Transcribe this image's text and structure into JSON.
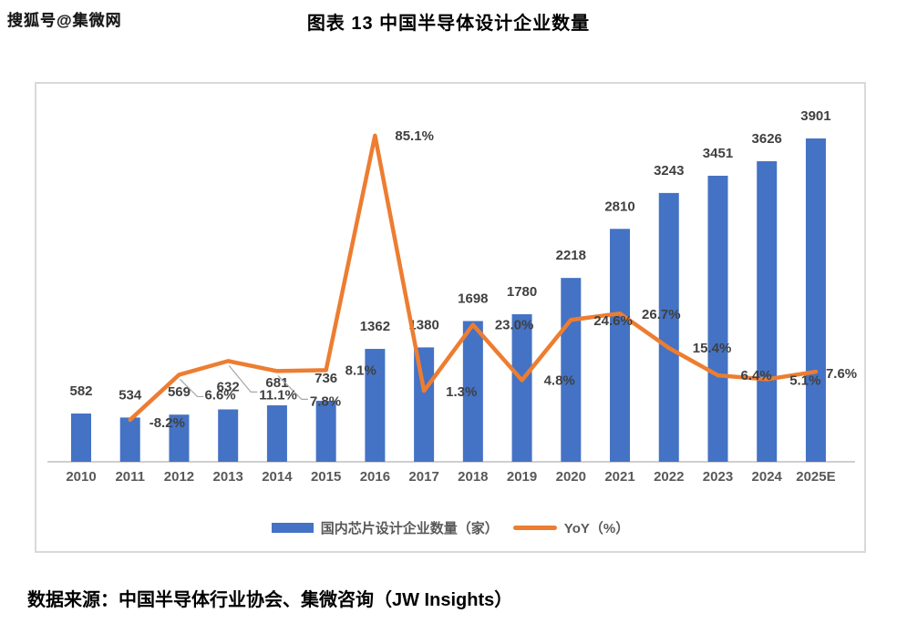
{
  "watermark": "搜狐号@集微网",
  "title": "图表 13 中国半导体设计企业数量",
  "source": "数据来源：中国半导体行业协会、集微咨询（JW Insights）",
  "colors": {
    "bar": "#4472C4",
    "line": "#ED7D31",
    "axis": "#bfbfbf",
    "leader": "#a6a6a6",
    "frame_border": "#d9d9d9",
    "label_text": "#404040"
  },
  "legend": [
    {
      "swatch": "bar",
      "label": "国内芯片设计企业数量（家）"
    },
    {
      "swatch": "line",
      "label": "YoY（%）"
    }
  ],
  "chart_data": {
    "type": "combo-bar-line",
    "title": "图表 13 中国半导体设计企业数量",
    "xlabel": "",
    "ylabel": "",
    "grid": false,
    "legend_position": "bottom",
    "categories": [
      "2010",
      "2011",
      "2012",
      "2013",
      "2014",
      "2015",
      "2016",
      "2017",
      "2018",
      "2019",
      "2020",
      "2021",
      "2022",
      "2023",
      "2024",
      "2025E"
    ],
    "series": [
      {
        "name": "国内芯片设计企业数量（家）",
        "type": "bar",
        "color": "#4472C4",
        "values": [
          582,
          534,
          569,
          632,
          681,
          736,
          1362,
          1380,
          1698,
          1780,
          2218,
          2810,
          3243,
          3451,
          3626,
          3901
        ],
        "value_labels": [
          "582",
          "534",
          "569",
          "632",
          "681",
          "736",
          "1362",
          "1380",
          "1698",
          "1780",
          "2218",
          "2810",
          "3243",
          "3451",
          "3626",
          "3901"
        ]
      },
      {
        "name": "YoY（%）",
        "type": "line",
        "color": "#ED7D31",
        "values": [
          null,
          -8.2,
          6.6,
          11.1,
          7.8,
          8.1,
          85.1,
          1.3,
          23.0,
          4.8,
          24.6,
          26.7,
          15.4,
          6.4,
          5.1,
          7.6
        ],
        "value_labels": [
          null,
          "-8.2%",
          "6.6%",
          "11.1%",
          "7.8%",
          "8.1%",
          "85.1%",
          "1.3%",
          "23.0%",
          "4.8%",
          "24.6%",
          "26.7%",
          "15.4%",
          "6.4%",
          "5.1%",
          "7.6%"
        ]
      }
    ]
  }
}
